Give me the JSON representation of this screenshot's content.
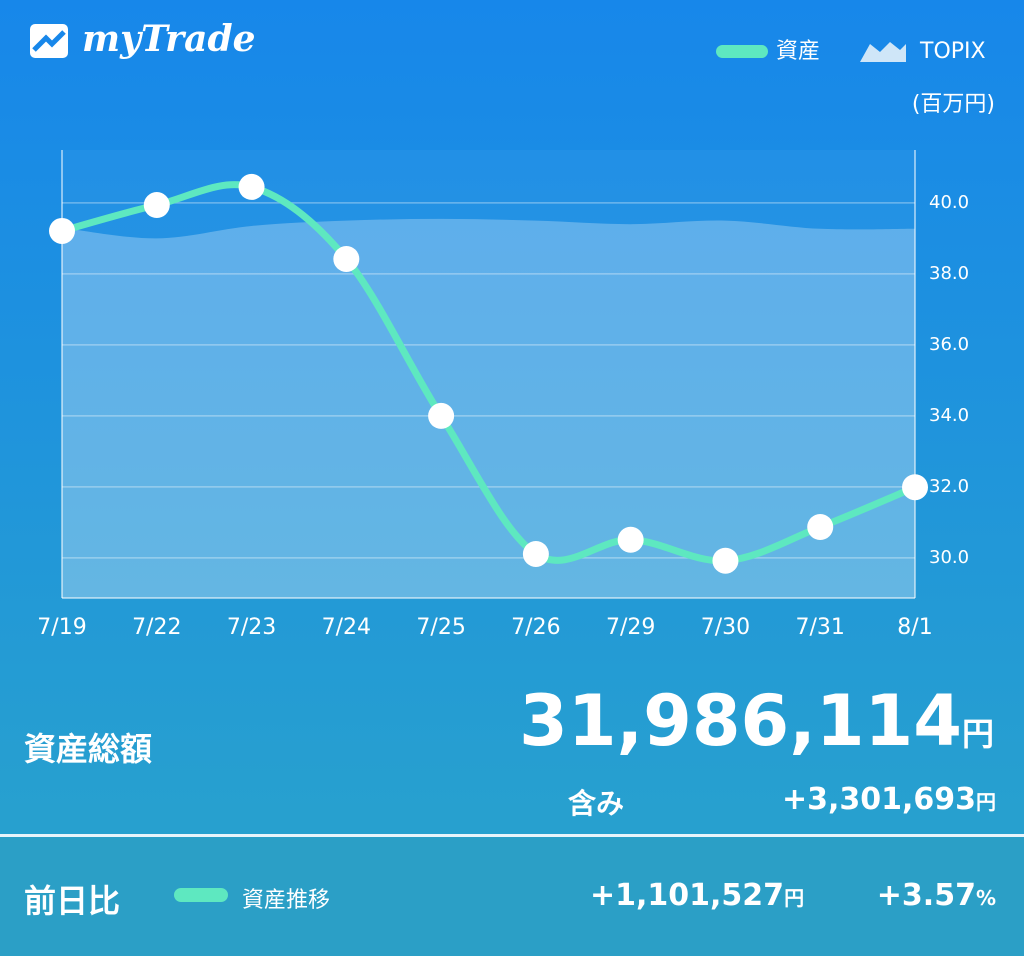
{
  "header": {
    "logo": "myTrade"
  },
  "chart_data": {
    "type": "line",
    "unit_label": "(百万円)",
    "categories": [
      "7/19",
      "7/22",
      "7/23",
      "7/24",
      "7/25",
      "7/26",
      "7/29",
      "7/30",
      "7/31",
      "8/1"
    ],
    "series": [
      {
        "name": "資産",
        "color": "#5ee8c0",
        "values": [
          39.21,
          39.94,
          40.45,
          38.42,
          34.0,
          30.11,
          30.51,
          29.92,
          30.87,
          31.99
        ]
      },
      {
        "name": "TOPIX",
        "color": "#cfe6f8",
        "style": "area",
        "values": [
          39.3,
          39.0,
          39.35,
          39.5,
          39.55,
          39.5,
          39.4,
          39.5,
          39.27,
          39.27
        ]
      }
    ],
    "ylim": [
      28.87,
      41.49
    ],
    "yticks": [
      {
        "value": 30,
        "label": "30.0"
      },
      {
        "value": 32,
        "label": "32.0"
      },
      {
        "value": 34,
        "label": "34.0"
      },
      {
        "value": 36,
        "label": "36.0"
      },
      {
        "value": 38,
        "label": "38.0"
      },
      {
        "value": 40,
        "label": "40.0"
      }
    ],
    "grid": true,
    "y_axis_side": "right",
    "legend_position": "top-right"
  },
  "summary": {
    "label": "資産総額",
    "total": "31,986,114",
    "total_unit": "円",
    "gain_label": "含み",
    "gain": "+3,301,693",
    "gain_unit": "円"
  },
  "footer": {
    "label": "前日比",
    "legend": "資産推移",
    "change": "+1,101,527",
    "change_unit": "円",
    "percent": "+3.57",
    "percent_unit": "%"
  }
}
